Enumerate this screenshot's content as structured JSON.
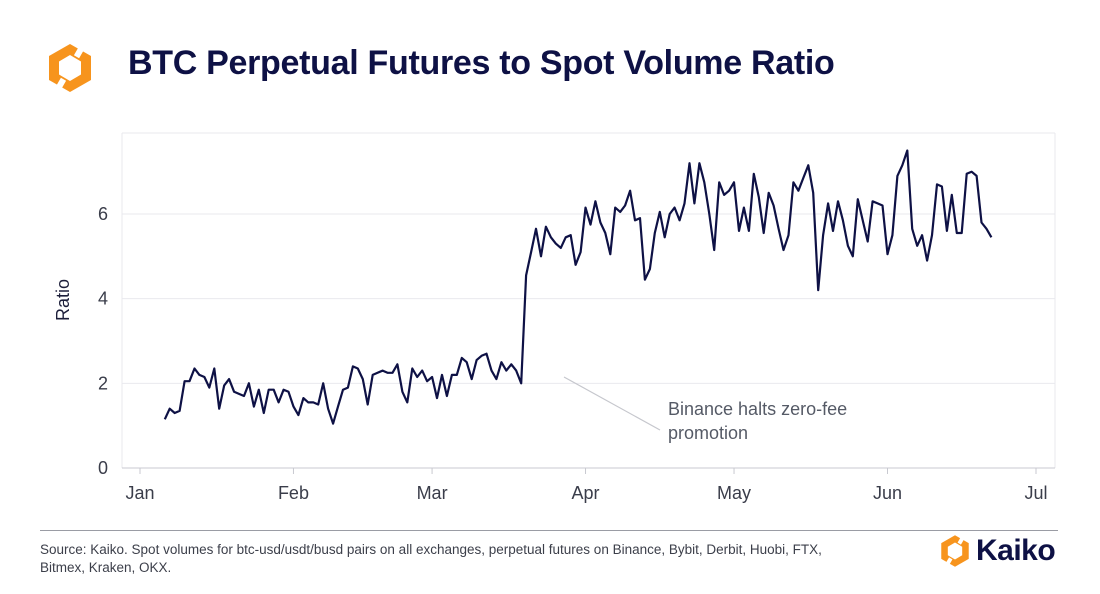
{
  "header": {
    "title": "BTC Perpetual Futures to Spot Volume Ratio",
    "logo_icon": "kaiko-hexagon-logo-icon"
  },
  "colors": {
    "line": "#0e1145",
    "logo_orange": "#f7941d",
    "grid": "#e9e9ee"
  },
  "footer": {
    "source": "Source: Kaiko. Spot volumes for btc-usd/usdt/busd pairs on all exchanges, perpetual futures on Binance, Bybit, Derbit, Huobi, FTX, Bitmex, Kraken, OKX.",
    "brand": "Kaiko"
  },
  "chart_data": {
    "type": "line",
    "title": "BTC Perpetual Futures to Spot Volume Ratio",
    "xlabel": "",
    "ylabel": "Ratio",
    "ylim": [
      0,
      7.6
    ],
    "yticks": [
      0,
      2,
      4,
      6
    ],
    "x_range": [
      "2022-01-01",
      "2022-07-01"
    ],
    "xticks": [
      {
        "label": "Jan",
        "date": "2022-01-01"
      },
      {
        "label": "Feb",
        "date": "2022-02-01"
      },
      {
        "label": "Mar",
        "date": "2022-03-01"
      },
      {
        "label": "Apr",
        "date": "2022-04-01"
      },
      {
        "label": "May",
        "date": "2022-05-01"
      },
      {
        "label": "Jun",
        "date": "2022-06-01"
      },
      {
        "label": "Jul",
        "date": "2022-07-01"
      }
    ],
    "grid": "horizontal",
    "legend": "none",
    "annotation": {
      "text_lines": [
        "Binance halts zero-fee",
        "promotion"
      ],
      "date": "2022-03-22",
      "value": 2.0
    },
    "series": [
      {
        "start_date": "2022-01-06",
        "interval_days": 1,
        "values": [
          1.15,
          1.4,
          1.3,
          1.35,
          2.05,
          2.05,
          2.35,
          2.2,
          2.15,
          1.9,
          2.35,
          1.4,
          1.95,
          2.1,
          1.8,
          1.75,
          1.7,
          2.0,
          1.45,
          1.85,
          1.3,
          1.85,
          1.85,
          1.55,
          1.85,
          1.8,
          1.45,
          1.25,
          1.65,
          1.55,
          1.55,
          1.5,
          2.0,
          1.4,
          1.05,
          1.45,
          1.85,
          1.9,
          2.4,
          2.35,
          2.1,
          1.5,
          2.2,
          2.25,
          2.3,
          2.25,
          2.25,
          2.45,
          1.8,
          1.55,
          2.35,
          2.15,
          2.3,
          2.05,
          2.15,
          1.65,
          2.2,
          1.7,
          2.2,
          2.2,
          2.6,
          2.5,
          2.1,
          2.55,
          2.65,
          2.7,
          2.3,
          2.1,
          2.5,
          2.3,
          2.45,
          2.3,
          2.0,
          4.55,
          5.1,
          5.65,
          5.0,
          5.7,
          5.45,
          5.3,
          5.2,
          5.45,
          5.5,
          4.8,
          5.1,
          6.15,
          5.75,
          6.3,
          5.8,
          5.55,
          5.05,
          6.15,
          6.05,
          6.2,
          6.55,
          5.85,
          5.9,
          4.45,
          4.7,
          5.55,
          6.05,
          5.45,
          6.0,
          6.15,
          5.85,
          6.25,
          7.2,
          6.25,
          7.2,
          6.75,
          6.0,
          5.15,
          6.75,
          6.45,
          6.55,
          6.75,
          5.6,
          6.15,
          5.6,
          6.95,
          6.4,
          5.55,
          6.5,
          6.2,
          5.65,
          5.15,
          5.5,
          6.75,
          6.55,
          6.85,
          7.15,
          6.5,
          4.2,
          5.5,
          6.25,
          5.6,
          6.3,
          5.85,
          5.25,
          5.0,
          6.35,
          5.85,
          5.35,
          6.3,
          6.25,
          6.2,
          5.05,
          5.5,
          6.9,
          7.15,
          7.5,
          5.65,
          5.25,
          5.5,
          4.9,
          5.5,
          6.7,
          6.65,
          5.6,
          6.45,
          5.55,
          5.55,
          6.95,
          7.0,
          6.9,
          5.8,
          5.65,
          5.45
        ]
      }
    ]
  }
}
